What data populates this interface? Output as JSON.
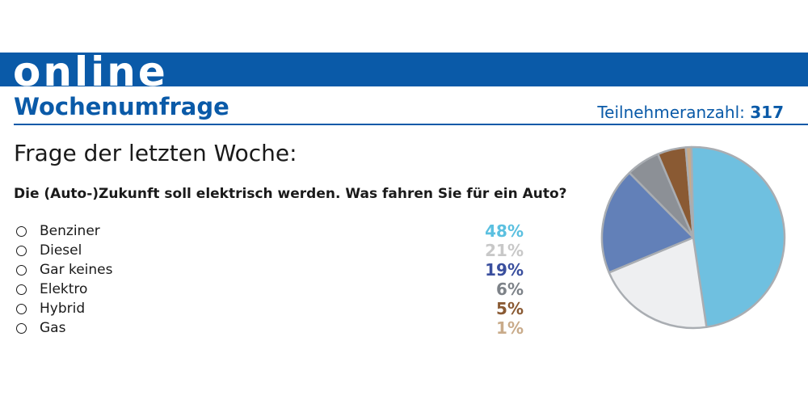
{
  "header": {
    "banner_text": "online",
    "title": "Wochenumfrage",
    "participants_label": "Teilnehmeranzahl:",
    "participants_count": "317"
  },
  "question_heading": "Frage der letzten Woche:",
  "question": "Die (Auto-)Zukunft soll elektrisch werden. Was fahren Sie für ein Auto?",
  "options": [
    {
      "label": "Benziner",
      "percent": "48%",
      "color": "#5bc0e0"
    },
    {
      "label": "Diesel",
      "percent": "21%",
      "color": "#c8c8c8"
    },
    {
      "label": "Gar keines",
      "percent": "19%",
      "color": "#3a4f9e"
    },
    {
      "label": "Elektro",
      "percent": "6%",
      "color": "#7d8288"
    },
    {
      "label": "Hybrid",
      "percent": "5%",
      "color": "#8a5a33"
    },
    {
      "label": "Gas",
      "percent": "1%",
      "color": "#c9ab8a"
    }
  ],
  "chart_data": {
    "type": "pie",
    "categories": [
      "Benziner",
      "Diesel",
      "Gar keines",
      "Elektro",
      "Hybrid",
      "Gas"
    ],
    "values": [
      48,
      21,
      19,
      6,
      5,
      1
    ],
    "colors": [
      "#6fc0e0",
      "#eeeff1",
      "#6280b8",
      "#8c9096",
      "#8a5a33",
      "#c9ab8a"
    ],
    "stroke_color": "#a9adb2",
    "start": "top, clockwise",
    "legend": "none",
    "title": ""
  }
}
